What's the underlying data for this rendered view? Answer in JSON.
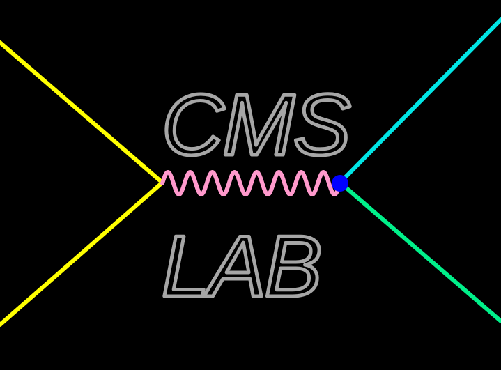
{
  "logo": {
    "line1": "CMS",
    "line2": "LAB"
  },
  "colors": {
    "background": "#000000",
    "text_outline": "#a6a6a6",
    "incoming_lines": "#ffff00",
    "propagator_wave": "#ff99cc",
    "vertex_dot": "#0000ff",
    "outgoing_upper_line": "#00e5e5",
    "outgoing_lower_line": "#00f08a"
  }
}
